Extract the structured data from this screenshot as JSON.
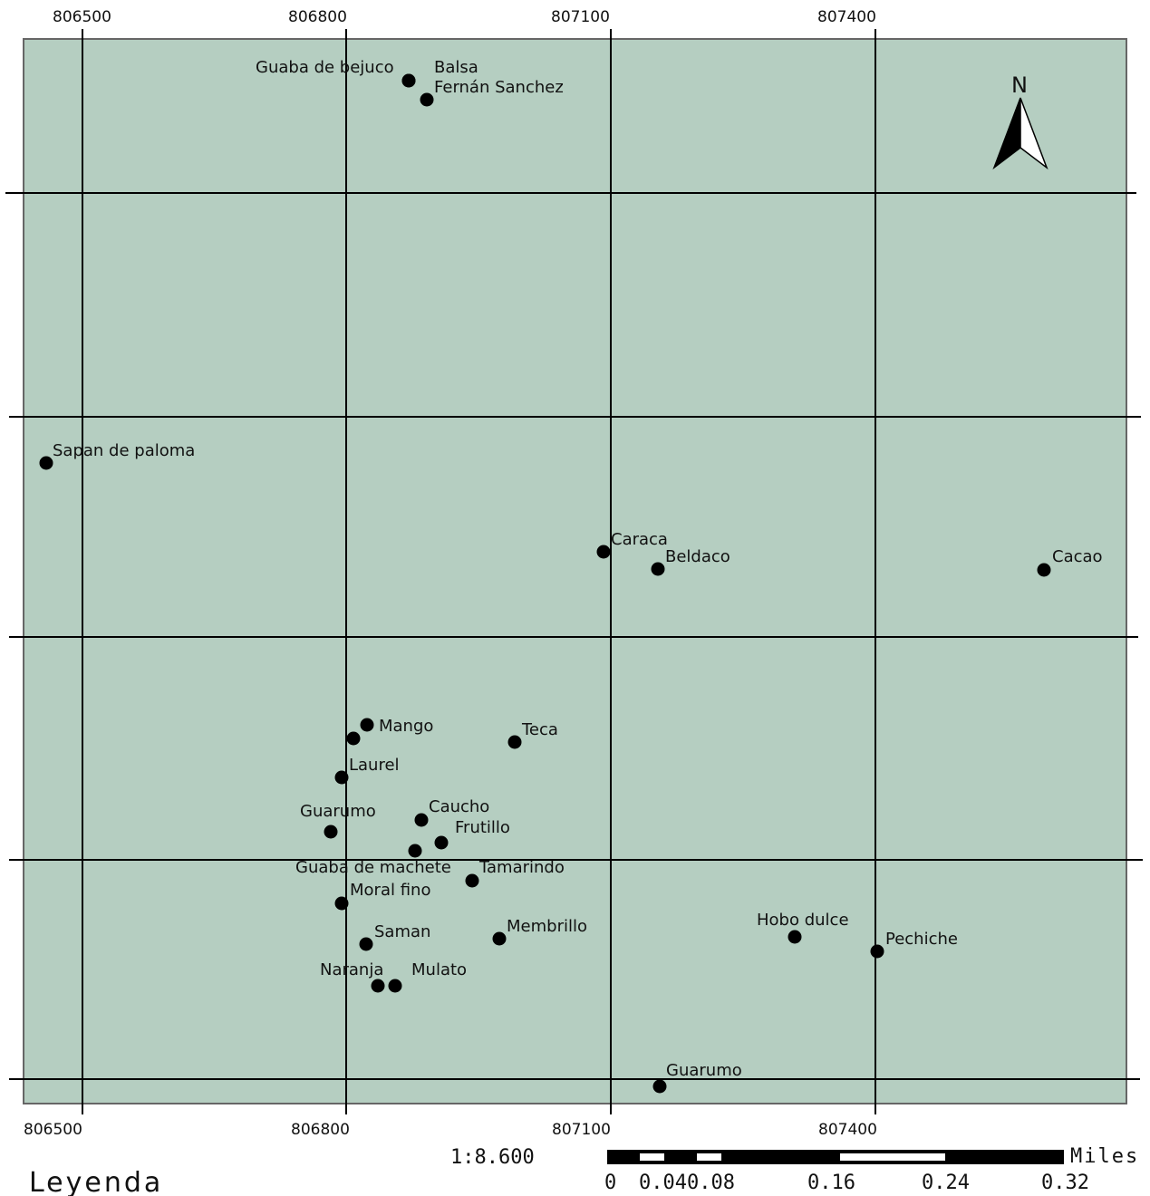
{
  "map": {
    "frame_color": "#b5cec1",
    "grid_color": "#000000",
    "point_color": "#000000",
    "x_ticks": [
      "806500",
      "806800",
      "807100",
      "807400"
    ],
    "points": [
      {
        "name": "Guaba de bejuco",
        "label_side": "left"
      },
      {
        "name": "Balsa",
        "label_side": "right"
      },
      {
        "name": "Fernán Sanchez",
        "label_side": "right"
      },
      {
        "name": "Sapan de paloma",
        "label_side": "right"
      },
      {
        "name": "Caraca",
        "label_side": "right"
      },
      {
        "name": "Beldaco",
        "label_side": "right"
      },
      {
        "name": "Cacao",
        "label_side": "right"
      },
      {
        "name": "Mango",
        "label_side": "right"
      },
      {
        "name": "Teca",
        "label_side": "right"
      },
      {
        "name": "Laurel",
        "label_side": "right"
      },
      {
        "name": "Guarumo",
        "label_side": "left"
      },
      {
        "name": "Caucho",
        "label_side": "right"
      },
      {
        "name": "Frutillo",
        "label_side": "right"
      },
      {
        "name": "Guaba de machete",
        "label_side": "left"
      },
      {
        "name": "Tamarindo",
        "label_side": "right"
      },
      {
        "name": "Moral fino",
        "label_side": "right"
      },
      {
        "name": "Saman",
        "label_side": "right"
      },
      {
        "name": "Membrillo",
        "label_side": "right"
      },
      {
        "name": "Naranja",
        "label_side": "left"
      },
      {
        "name": "Mulato",
        "label_side": "right"
      },
      {
        "name": "Hobo dulce",
        "label_side": "left"
      },
      {
        "name": "Pechiche",
        "label_side": "right"
      },
      {
        "name": "Guarumo",
        "label_side": "right"
      }
    ],
    "north_arrow": {
      "label": "N",
      "icon": "north-arrow-icon"
    }
  },
  "scale": {
    "ratio": "1:8.600",
    "unit": "Miles",
    "ticks": [
      "0",
      "0.040.08",
      "0.16",
      "0.24",
      "0.32"
    ]
  },
  "legend": {
    "title": "Leyenda"
  }
}
